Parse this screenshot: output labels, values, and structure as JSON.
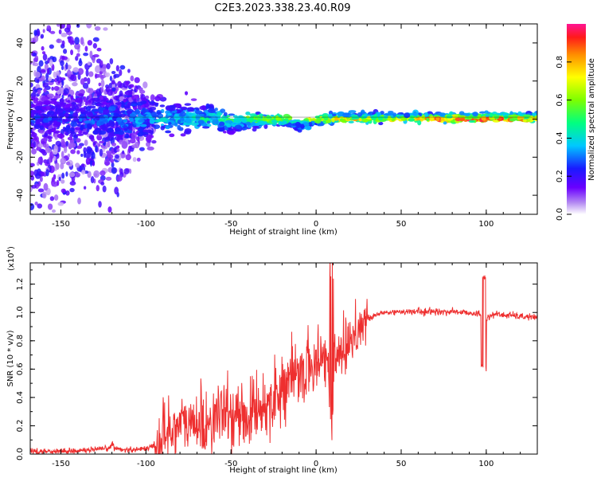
{
  "figure_title": "C2E3.2023.338.23.40.R09",
  "colorbar": {
    "label": "Normalized spectral amplitude",
    "ticks": [
      "0.0",
      "0.2",
      "0.4",
      "0.6",
      "0.8"
    ]
  },
  "chart_data": [
    {
      "type": "heatmap",
      "title": "C2E3.2023.338.23.40.R09",
      "xlabel": "Height of straight line (km)",
      "ylabel": "Frequency (Hz)",
      "xlim": [
        -168,
        130
      ],
      "ylim": [
        -50,
        50
      ],
      "xticks": [
        "-150",
        "-100",
        "-50",
        "0",
        "50",
        "100"
      ],
      "yticks": [
        "40",
        "20",
        "0",
        "-20",
        "-40"
      ],
      "colorbar_label": "Normalized spectral amplitude",
      "colorbar_range": [
        0.0,
        1.0
      ],
      "description_points": [
        {
          "x": -150,
          "spread_hz": 50,
          "amplitude": 0.25
        },
        {
          "x": -100,
          "spread_hz": 10,
          "amplitude": 0.35
        },
        {
          "x": -60,
          "spread_hz": 6,
          "amplitude": 0.45
        },
        {
          "x": -30,
          "spread_hz": 3,
          "amplitude": 0.6
        },
        {
          "x": 0,
          "spread_hz": 2,
          "amplitude": 0.75
        },
        {
          "x": 50,
          "spread_hz": 2,
          "amplitude": 0.7
        },
        {
          "x": 85,
          "spread_hz": 2,
          "amplitude": 0.95
        },
        {
          "x": 120,
          "spread_hz": 2,
          "amplitude": 0.8
        }
      ]
    },
    {
      "type": "line",
      "xlabel": "Height of straight line (km)",
      "ylabel": "SNR (10 * v/v)",
      "y_multiplier": "(x10",
      "y_multiplier_exp": "4",
      "y_multiplier_close": ")",
      "xlim": [
        -168,
        130
      ],
      "ylim": [
        0.0,
        1.35
      ],
      "xticks": [
        "-150",
        "-100",
        "-50",
        "0",
        "50",
        "100"
      ],
      "yticks": [
        "0.0",
        "0.2",
        "0.4",
        "0.6",
        "0.8",
        "1.0",
        "1.2"
      ],
      "series": [
        {
          "color": "#ee2f2f",
          "x": [
            -168,
            -150,
            -130,
            -120,
            -110,
            -100,
            -95,
            -90,
            -85,
            -80,
            -75,
            -70,
            -65,
            -60,
            -55,
            -50,
            -45,
            -40,
            -35,
            -30,
            -25,
            -20,
            -15,
            -10,
            -5,
            0,
            5,
            10,
            15,
            20,
            25,
            30,
            35,
            40,
            45,
            50,
            55,
            60,
            65,
            70,
            75,
            80,
            85,
            90,
            95,
            100,
            105,
            110,
            115,
            120,
            125,
            130
          ],
          "y": [
            0.02,
            0.02,
            0.03,
            0.04,
            0.03,
            0.04,
            0.06,
            0.12,
            0.18,
            0.22,
            0.2,
            0.22,
            0.2,
            0.26,
            0.28,
            0.28,
            0.26,
            0.28,
            0.32,
            0.34,
            0.4,
            0.48,
            0.52,
            0.56,
            0.6,
            0.64,
            0.68,
            0.7,
            0.74,
            0.82,
            0.9,
            0.95,
            0.98,
            1.0,
            1.0,
            1.01,
            1.0,
            1.01,
            1.0,
            1.01,
            1.0,
            1.01,
            1.0,
            1.0,
            0.99,
            0.96,
            0.99,
            0.98,
            0.98,
            0.97,
            0.97,
            0.96
          ]
        }
      ]
    }
  ]
}
